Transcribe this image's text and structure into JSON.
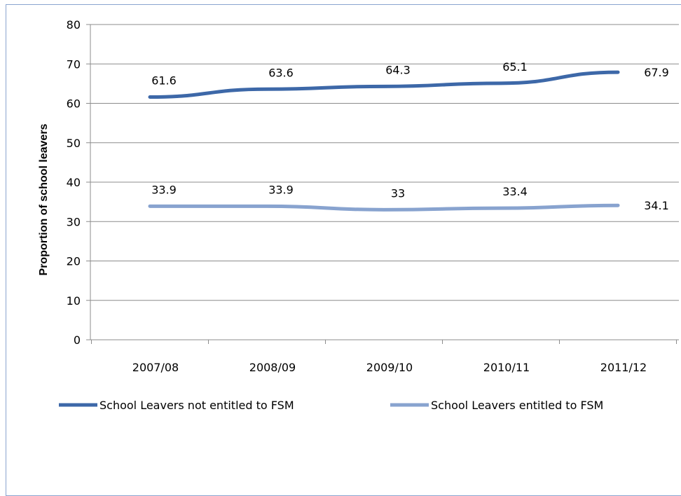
{
  "chart_data": {
    "type": "line",
    "title": "",
    "xlabel": "",
    "ylabel": "Proportion of school leavers",
    "categories": [
      "2007/08",
      "2008/09",
      "2009/10",
      "2010/11",
      "2011/12"
    ],
    "ylim": [
      0,
      80
    ],
    "yticks": [
      0,
      10,
      20,
      30,
      40,
      50,
      60,
      70,
      80
    ],
    "grid": true,
    "legend_position": "bottom",
    "series": [
      {
        "name": "School Leavers not entitled to FSM",
        "values": [
          61.6,
          63.6,
          64.3,
          65.1,
          67.9
        ],
        "labels": [
          "61.6",
          "63.6",
          "64.3",
          "65.1",
          "67.9"
        ],
        "color": "#3d68a8"
      },
      {
        "name": "School Leavers entitled to FSM",
        "values": [
          33.9,
          33.9,
          33,
          33.4,
          34.1
        ],
        "labels": [
          "33.9",
          "33.9",
          "33",
          "33.4",
          "34.1"
        ],
        "color": "#88a3cf"
      }
    ]
  }
}
